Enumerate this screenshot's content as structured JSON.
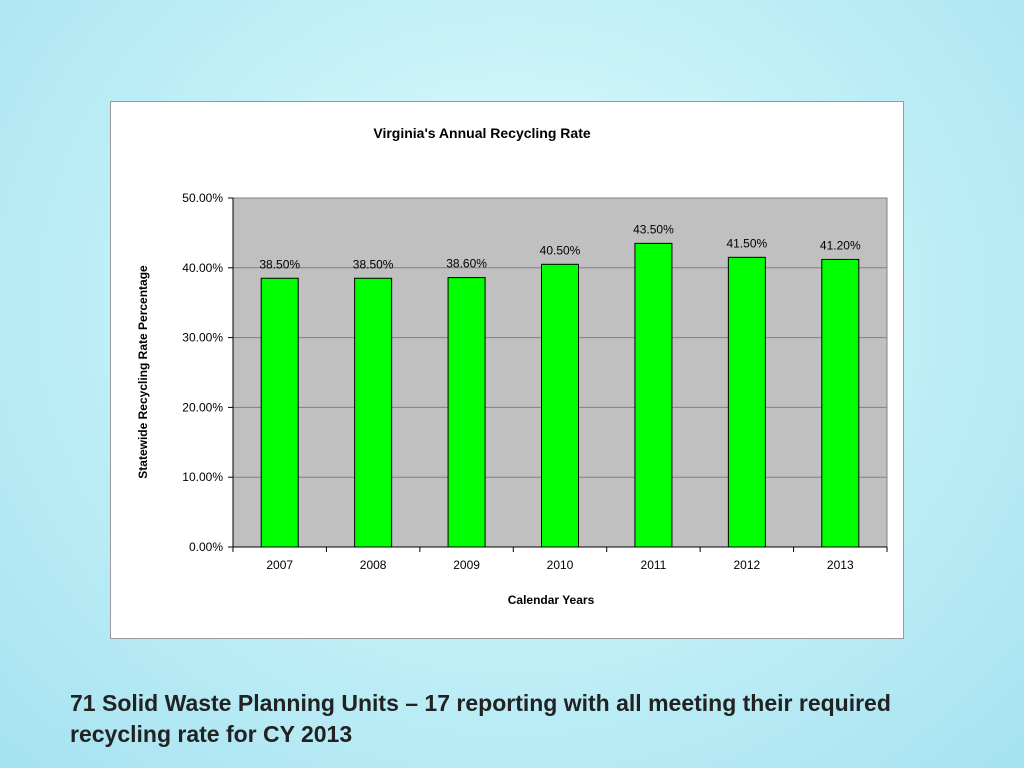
{
  "caption": "71 Solid Waste Planning Units – 17 reporting with all meeting their required recycling rate for CY 2013",
  "chart_data": {
    "type": "bar",
    "title": "Virginia's Annual Recycling Rate",
    "xlabel": "Calendar Years",
    "ylabel": "Statewide Recycling Rate Percentage",
    "categories": [
      "2007",
      "2008",
      "2009",
      "2010",
      "2011",
      "2012",
      "2013"
    ],
    "values": [
      38.5,
      38.5,
      38.6,
      40.5,
      43.5,
      41.5,
      41.2
    ],
    "data_labels": [
      "38.50%",
      "38.50%",
      "38.60%",
      "40.50%",
      "43.50%",
      "41.50%",
      "41.20%"
    ],
    "ylim": [
      0,
      50
    ],
    "yticks": [
      0,
      10,
      20,
      30,
      40,
      50
    ],
    "ytick_labels": [
      "0.00%",
      "10.00%",
      "20.00%",
      "30.00%",
      "40.00%",
      "50.00%"
    ],
    "grid": true,
    "legend": "none",
    "bar_color": "#00ff00",
    "plot_background": "#c0c0c0"
  }
}
